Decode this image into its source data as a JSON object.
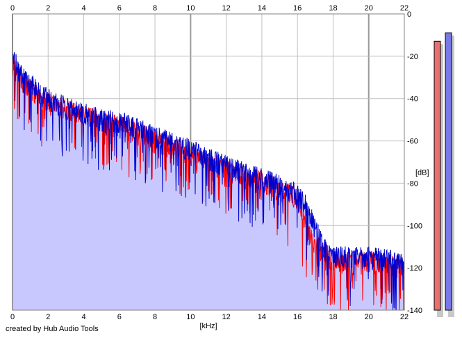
{
  "footer": {
    "credit": "created by Hub Audio Tools"
  },
  "chart_data": {
    "type": "line",
    "xlabel": "[kHz]",
    "ylabel": "[dB]",
    "xlim": [
      0,
      22
    ],
    "ylim": [
      -140,
      0
    ],
    "x_ticks": [
      0,
      2,
      4,
      6,
      8,
      10,
      12,
      14,
      16,
      18,
      20,
      22
    ],
    "y_ticks": [
      0,
      -20,
      -40,
      -60,
      -80,
      -100,
      -120,
      -140
    ],
    "y_tick_labels": [
      "0",
      "-20",
      "-40",
      "-60",
      "-80",
      "-100",
      "-120",
      "-140"
    ],
    "grid": true,
    "background_color": "#ffffff",
    "fill_color": "#c8c8ff",
    "series": [
      {
        "color": "#ff0000",
        "x": [
          0.0,
          0.2,
          0.5,
          1.0,
          1.5,
          2.0,
          3.0,
          4.0,
          5.0,
          6.0,
          7.0,
          8.0,
          9.0,
          10.0,
          11.0,
          12.0,
          13.0,
          14.0,
          15.0,
          16.0,
          16.5,
          17.0,
          17.5,
          18.0,
          19.0,
          20.0,
          21.0,
          22.0
        ],
        "values": [
          -22,
          -25,
          -30,
          -34,
          -38,
          -41,
          -44,
          -47,
          -50,
          -52,
          -55,
          -59,
          -62,
          -65,
          -69,
          -73,
          -76,
          -78,
          -82,
          -86,
          -100,
          -108,
          -112,
          -115,
          -117,
          -116,
          -117,
          -120
        ]
      },
      {
        "color": "#0000cc",
        "x": [
          0.0,
          0.2,
          0.5,
          1.0,
          1.5,
          2.0,
          3.0,
          4.0,
          5.0,
          6.0,
          7.0,
          8.0,
          9.0,
          10.0,
          11.0,
          12.0,
          13.0,
          14.0,
          15.0,
          16.0,
          16.5,
          17.0,
          17.5,
          18.0,
          19.0,
          20.0,
          21.0,
          22.0
        ],
        "values": [
          -20,
          -23,
          -28,
          -32,
          -36,
          -39,
          -43,
          -46,
          -49,
          -50,
          -53,
          -57,
          -60,
          -63,
          -67,
          -71,
          -74,
          -77,
          -80,
          -84,
          -90,
          -100,
          -110,
          -113,
          -114,
          -114,
          -115,
          -118
        ]
      }
    ],
    "level_meters": [
      {
        "color": "#e87070",
        "value_db": -7
      },
      {
        "color": "#7878e8",
        "value_db": -3
      }
    ]
  }
}
